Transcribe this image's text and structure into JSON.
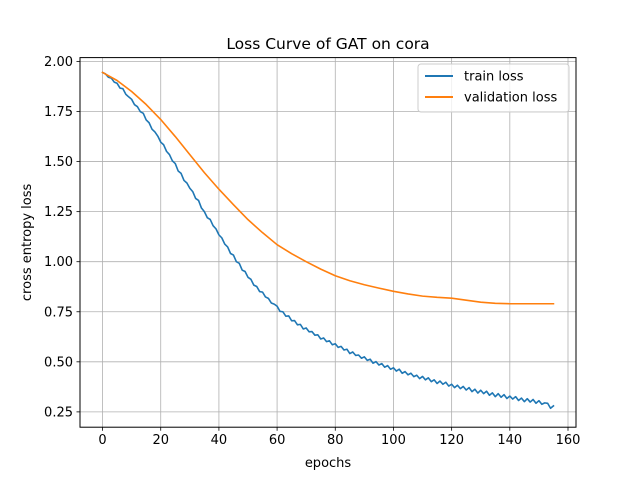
{
  "chart_data": {
    "type": "line",
    "title": "Loss Curve of GAT on cora",
    "xlabel": "epochs",
    "ylabel": "cross entropy loss",
    "xlim": [
      -7.75,
      162.75
    ],
    "ylim": [
      0.1735,
      2.0193
    ],
    "xticks": [
      0,
      20,
      40,
      60,
      80,
      100,
      120,
      140,
      160
    ],
    "yticks": [
      0.25,
      0.5,
      0.75,
      1.0,
      1.25,
      1.5,
      1.75,
      2.0
    ],
    "ytick_labels": [
      "0.25",
      "0.50",
      "0.75",
      "1.00",
      "1.25",
      "1.50",
      "1.75",
      "2.00"
    ],
    "grid": true,
    "legend_position": "top-right",
    "series": [
      {
        "name": "train loss",
        "color": "#1f77b4",
        "x": [
          0,
          1,
          2,
          3,
          4,
          5,
          6,
          7,
          8,
          9,
          10,
          11,
          12,
          13,
          14,
          15,
          16,
          17,
          18,
          19,
          20,
          21,
          22,
          23,
          24,
          25,
          26,
          27,
          28,
          29,
          30,
          31,
          32,
          33,
          34,
          35,
          36,
          37,
          38,
          39,
          40,
          41,
          42,
          43,
          44,
          45,
          46,
          47,
          48,
          49,
          50,
          51,
          52,
          53,
          54,
          55,
          56,
          57,
          58,
          59,
          60,
          61,
          62,
          63,
          64,
          65,
          66,
          67,
          68,
          69,
          70,
          71,
          72,
          73,
          74,
          75,
          76,
          77,
          78,
          79,
          80,
          81,
          82,
          83,
          84,
          85,
          86,
          87,
          88,
          89,
          90,
          91,
          92,
          93,
          94,
          95,
          96,
          97,
          98,
          99,
          100,
          101,
          102,
          103,
          104,
          105,
          106,
          107,
          108,
          109,
          110,
          111,
          112,
          113,
          114,
          115,
          116,
          117,
          118,
          119,
          120,
          121,
          122,
          123,
          124,
          125,
          126,
          127,
          128,
          129,
          130,
          131,
          132,
          133,
          134,
          135,
          136,
          137,
          138,
          139,
          140,
          141,
          142,
          143,
          144,
          145,
          146,
          147,
          148,
          149,
          150,
          151,
          152,
          153,
          154,
          155
        ],
        "y": [
          1.945,
          1.935,
          1.925,
          1.912,
          1.9,
          1.887,
          1.872,
          1.858,
          1.84,
          1.82,
          1.806,
          1.79,
          1.77,
          1.752,
          1.735,
          1.713,
          1.69,
          1.666,
          1.645,
          1.622,
          1.603,
          1.577,
          1.555,
          1.53,
          1.51,
          1.486,
          1.458,
          1.435,
          1.41,
          1.385,
          1.373,
          1.345,
          1.32,
          1.3,
          1.275,
          1.245,
          1.224,
          1.205,
          1.185,
          1.16,
          1.14,
          1.112,
          1.093,
          1.07,
          1.047,
          1.028,
          1.004,
          0.985,
          0.964,
          0.946,
          0.926,
          0.906,
          0.888,
          0.872,
          0.858,
          0.842,
          0.828,
          0.812,
          0.8,
          0.784,
          0.77,
          0.758,
          0.745,
          0.736,
          0.722,
          0.71,
          0.7,
          0.692,
          0.682,
          0.67,
          0.662,
          0.655,
          0.645,
          0.64,
          0.63,
          0.62,
          0.612,
          0.605,
          0.6,
          0.592,
          0.584,
          0.577,
          0.57,
          0.565,
          0.558,
          0.548,
          0.543,
          0.537,
          0.53,
          0.524,
          0.518,
          0.512,
          0.507,
          0.5,
          0.496,
          0.49,
          0.484,
          0.478,
          0.475,
          0.47,
          0.465,
          0.46,
          0.455,
          0.45,
          0.445,
          0.44,
          0.436,
          0.432,
          0.428,
          0.424,
          0.42,
          0.416,
          0.412,
          0.408,
          0.404,
          0.4,
          0.397,
          0.393,
          0.39,
          0.386,
          0.382,
          0.379,
          0.376,
          0.372,
          0.369,
          0.366,
          0.362,
          0.359,
          0.356,
          0.353,
          0.35,
          0.347,
          0.344,
          0.341,
          0.338,
          0.335,
          0.333,
          0.33,
          0.327,
          0.325,
          0.322,
          0.32,
          0.317,
          0.315,
          0.312,
          0.31,
          0.308,
          0.306,
          0.303,
          0.301,
          0.299,
          0.297,
          0.295,
          0.293,
          0.268,
          0.28
        ],
        "noise": [
          0,
          0.003,
          -0.004,
          0.005,
          -0.003,
          0.004,
          -0.005,
          0.006,
          -0.004,
          0.003,
          0.005,
          -0.006,
          0.004,
          -0.003,
          0.006,
          -0.005,
          0.004,
          -0.004,
          0.003,
          0.005,
          -0.006,
          0.007,
          -0.004,
          0.005,
          -0.006,
          0.004,
          -0.005,
          0.006,
          -0.004,
          0.008,
          -0.006,
          0.005,
          -0.004,
          0.006,
          -0.007,
          0.005,
          -0.004,
          0.006,
          -0.005,
          0.004,
          -0.006,
          0.007,
          -0.005,
          0.004,
          -0.006,
          0.005,
          -0.004,
          0.007,
          -0.006,
          0.005,
          -0.004,
          0.006,
          -0.005,
          0.004,
          -0.007,
          0.006,
          -0.004,
          0.005,
          -0.006,
          0.004,
          0.008,
          -0.006,
          0.005,
          -0.008,
          0.007,
          -0.005,
          0.006,
          -0.007,
          0.005,
          -0.006,
          0.007,
          -0.005,
          0.006,
          -0.007,
          0.005,
          -0.006,
          0.007,
          -0.004,
          0.005,
          -0.007,
          0.006,
          -0.005,
          0.007,
          -0.006,
          0.005,
          -0.007,
          0.006,
          -0.005,
          0.004,
          -0.006,
          0.007,
          -0.005,
          0.006,
          -0.007,
          0.005,
          -0.006,
          0.007,
          -0.005,
          0.006,
          -0.007,
          0.005,
          -0.006,
          0.008,
          -0.007,
          0.006,
          -0.005,
          0.007,
          -0.006,
          0.005,
          -0.008,
          0.007,
          -0.006,
          0.008,
          -0.007,
          0.006,
          -0.008,
          0.007,
          -0.005,
          0.008,
          -0.007,
          0.006,
          -0.008,
          0.007,
          -0.006,
          0.008,
          -0.007,
          0.009,
          -0.008,
          0.007,
          -0.009,
          0.008,
          -0.006,
          0.009,
          -0.008,
          0.007,
          -0.009,
          0.008,
          -0.007,
          0.009,
          -0.008,
          0.007,
          -0.006,
          0.009,
          -0.008,
          0.007,
          -0.009,
          0.008,
          -0.007,
          0.009,
          -0.008,
          0.007,
          -0.009,
          0,
          0
        ]
      },
      {
        "name": "validation loss",
        "color": "#ff7f0e",
        "x": [
          0,
          5,
          10,
          15,
          20,
          25,
          30,
          35,
          40,
          45,
          50,
          55,
          60,
          65,
          70,
          75,
          80,
          85,
          90,
          95,
          100,
          105,
          110,
          115,
          120,
          125,
          130,
          135,
          140,
          145,
          150,
          155
        ],
        "y": [
          1.945,
          1.905,
          1.85,
          1.785,
          1.71,
          1.625,
          1.535,
          1.445,
          1.362,
          1.285,
          1.21,
          1.145,
          1.085,
          1.04,
          1.0,
          0.963,
          0.93,
          0.905,
          0.885,
          0.868,
          0.852,
          0.839,
          0.828,
          0.822,
          0.818,
          0.808,
          0.798,
          0.792,
          0.79,
          0.79,
          0.79,
          0.79
        ]
      }
    ]
  }
}
